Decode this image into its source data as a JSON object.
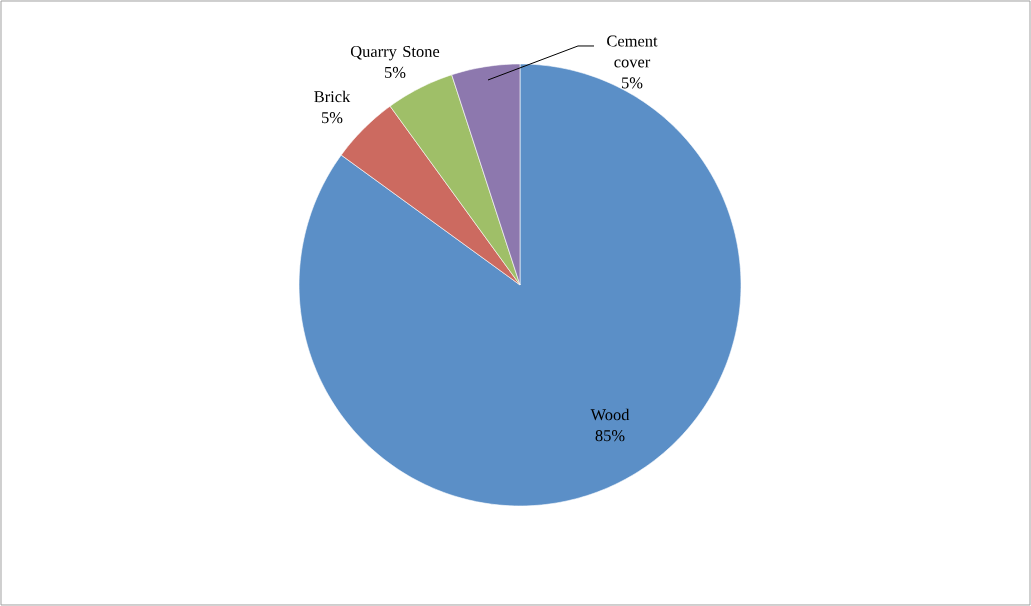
{
  "chart_data": {
    "type": "pie",
    "categories": [
      "Wood",
      "Brick",
      "Quarry Stone",
      "Cement cover"
    ],
    "values": [
      85,
      5,
      5,
      5
    ],
    "value_labels": [
      "85%",
      "5%",
      "5%",
      "5%"
    ],
    "colors": [
      "#5b8fc7",
      "#cc6a60",
      "#9fbf68",
      "#8d78ae"
    ]
  }
}
